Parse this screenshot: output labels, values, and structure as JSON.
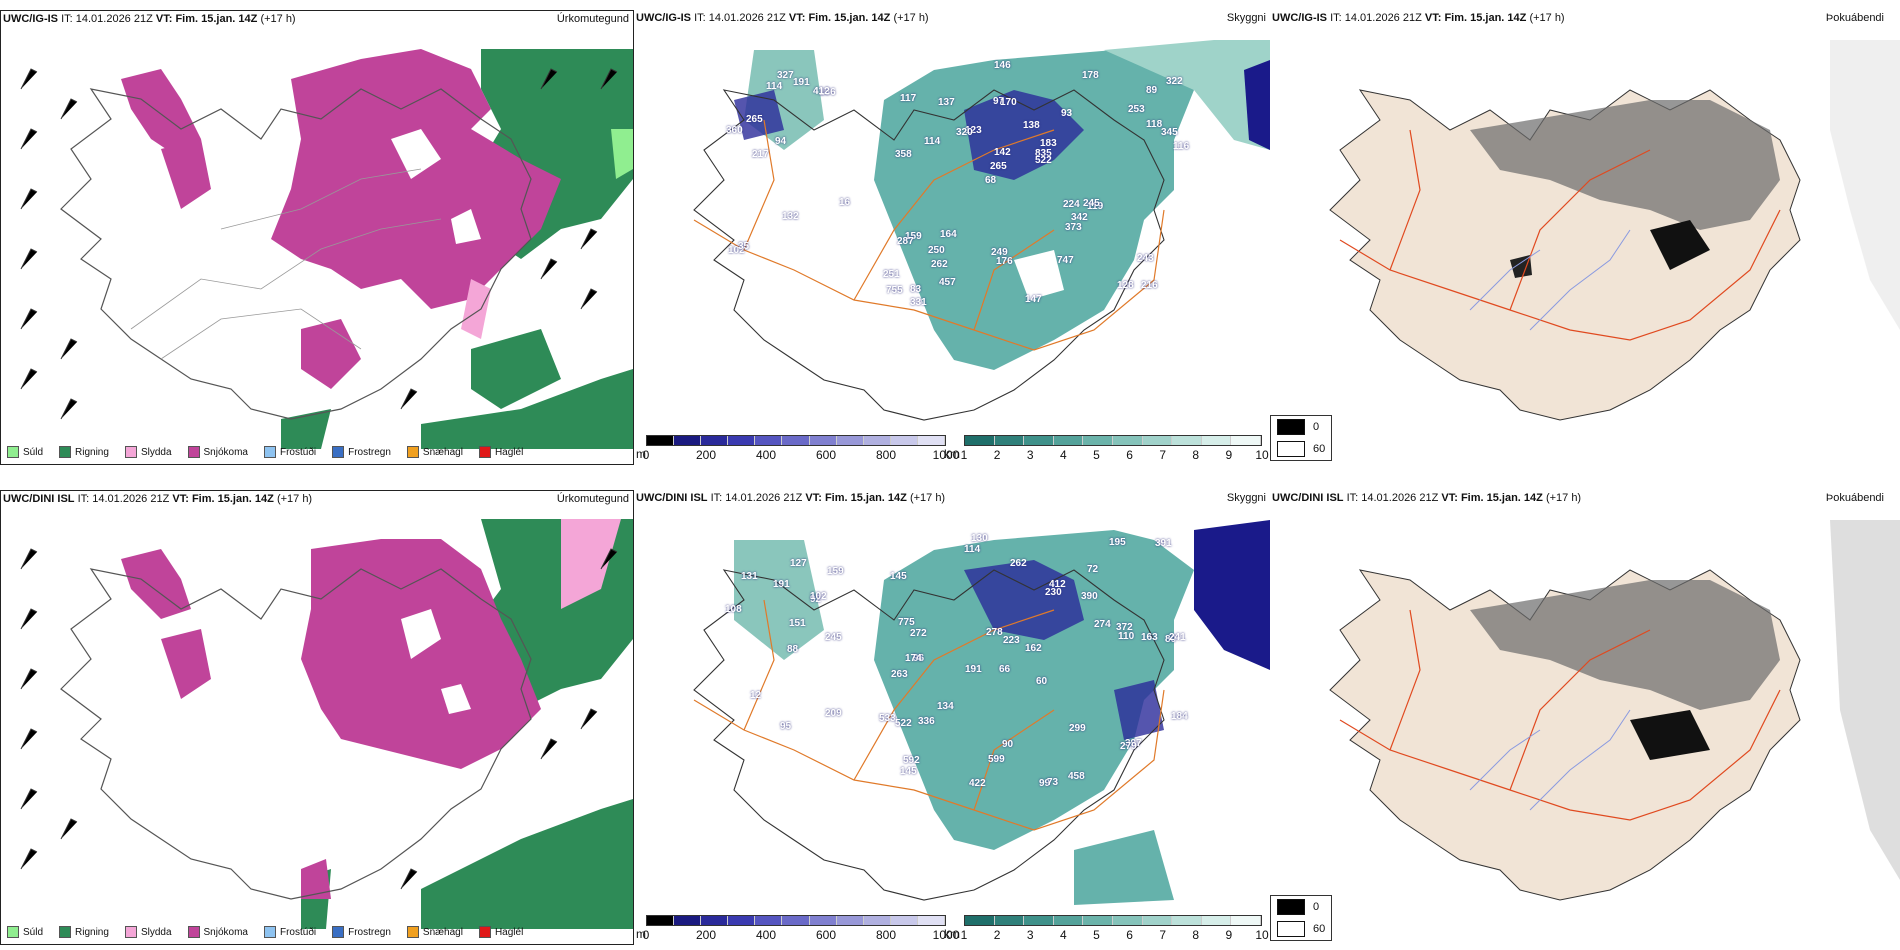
{
  "rows": [
    {
      "model": "UWC/IG-IS",
      "it_label": "IT:",
      "it_value": "14.01.2026 21Z",
      "vt_label": "VT:",
      "vt_value": "Fim. 15.jan. 14Z",
      "lead": "(+17 h)",
      "titles": [
        "Úrkomutegund",
        "Skyggni",
        "Þokuábendi"
      ],
      "labels": [
        "216",
        "358",
        "89",
        "68",
        "93",
        "83",
        "97",
        "138",
        "159",
        "123",
        "251",
        "262",
        "170",
        "183",
        "119",
        "117",
        "146",
        "116",
        "224",
        "118",
        "265",
        "249",
        "142",
        "137",
        "178",
        "164",
        "128",
        "243",
        "245",
        "147",
        "320",
        "114",
        "373",
        "457",
        "345",
        "835",
        "755",
        "176",
        "522",
        "287",
        "253",
        "322",
        "342",
        "747",
        "250",
        "331",
        "102",
        "132",
        "186",
        "327",
        "217",
        "360",
        "265",
        "412",
        "35",
        "191",
        "114",
        "94",
        "16"
      ]
    },
    {
      "model": "UWC/DINI ISL",
      "it_label": "IT:",
      "it_value": "14.01.2026 21Z",
      "vt_label": "VT:",
      "vt_value": "Fim. 15.jan. 14Z",
      "lead": "(+17 h)",
      "titles": [
        "Úrkomutegund",
        "Skyggni",
        "Þokuábendi"
      ],
      "labels": [
        "130",
        "72",
        "80",
        "66",
        "60",
        "96",
        "145",
        "390",
        "263",
        "230",
        "162",
        "145",
        "114",
        "191",
        "99",
        "73",
        "90",
        "195",
        "274",
        "134",
        "272",
        "174",
        "241",
        "163",
        "533",
        "775",
        "223",
        "110",
        "397",
        "522",
        "279",
        "412",
        "336",
        "278",
        "299",
        "184",
        "372",
        "599",
        "391",
        "262",
        "592",
        "422",
        "458",
        "131",
        "95",
        "92",
        "209",
        "102",
        "108",
        "88",
        "191",
        "245",
        "151",
        "159",
        "127",
        "12"
      ]
    }
  ],
  "precip_legend": [
    {
      "label": "Súld",
      "color": "#90ee90"
    },
    {
      "label": "Rigning",
      "color": "#2e8b57"
    },
    {
      "label": "Slydda",
      "color": "#f4a6d7"
    },
    {
      "label": "Snjókoma",
      "color": "#c0449a"
    },
    {
      "label": "Frostúði",
      "color": "#8ec3f0"
    },
    {
      "label": "Frostregn",
      "color": "#3a6fc4"
    },
    {
      "label": "Snæhagl",
      "color": "#f0a020"
    },
    {
      "label": "Haglél",
      "color": "#e01818"
    }
  ],
  "ceiling_scale": {
    "unit": "m",
    "ticks": [
      "0",
      "200",
      "400",
      "600",
      "800",
      "1000"
    ],
    "colors": [
      "#000000",
      "#1a1a80",
      "#2a2a9a",
      "#3a3ab0",
      "#5555c0",
      "#6a6ac8",
      "#8080d0",
      "#9898d8",
      "#b0b0e0",
      "#c8c8ea",
      "#e0e0f4"
    ]
  },
  "visibility_scale": {
    "unit": "km",
    "ticks": [
      "1",
      "2",
      "3",
      "4",
      "5",
      "6",
      "7",
      "8",
      "9",
      "10"
    ],
    "colors": [
      "#1f6f6a",
      "#2f807a",
      "#3f918a",
      "#54a29a",
      "#6bb3aa",
      "#85c3ba",
      "#a0d2ca",
      "#bce1da",
      "#d6eee9",
      "#eef8f6"
    ]
  },
  "fog_key": [
    {
      "label": "0",
      "color": "#000000"
    },
    {
      "label": "60",
      "color": "#ffffff"
    }
  ]
}
